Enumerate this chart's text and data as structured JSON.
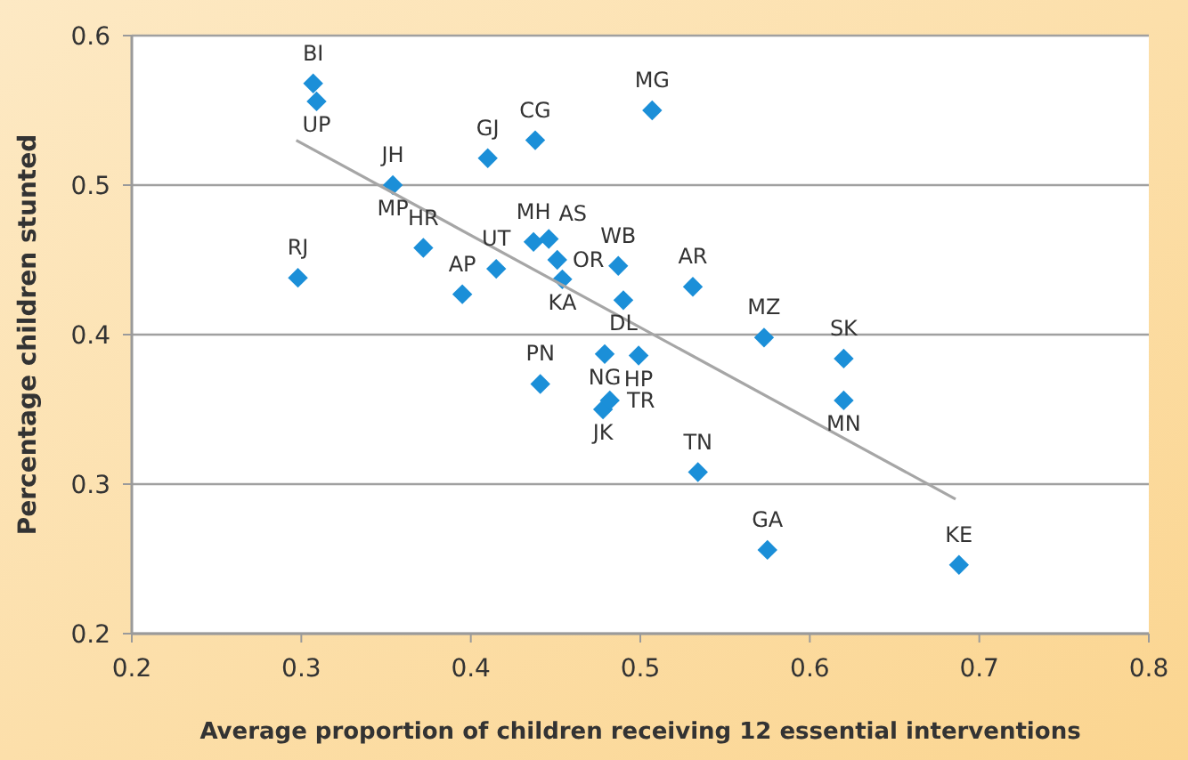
{
  "chart_data": {
    "type": "scatter",
    "xlabel": "Average proportion of children receiving 12 essential interventions",
    "ylabel": "Percentage children stunted",
    "xlim": [
      0.2,
      0.8
    ],
    "xticks": [
      0.2,
      0.3,
      0.4,
      0.5,
      0.6,
      0.7,
      0.8
    ],
    "ylim": [
      0.2,
      0.6
    ],
    "yticks": [
      0.2,
      0.3,
      0.4,
      0.5,
      0.6
    ],
    "grid": "y",
    "series": [
      {
        "marker": "diamond",
        "color": "#1b8fd8",
        "x": [
          0.307,
          0.309,
          0.354,
          0.41,
          0.438,
          0.298,
          0.372,
          0.395,
          0.415,
          0.437,
          0.446,
          0.451,
          0.454,
          0.487,
          0.49,
          0.531,
          0.507,
          0.573,
          0.62,
          0.499,
          0.479,
          0.441,
          0.478,
          0.482,
          0.62,
          0.534,
          0.575,
          0.688
        ],
        "values": [
          0.568,
          0.556,
          0.5,
          0.518,
          0.53,
          0.438,
          0.458,
          0.427,
          0.444,
          0.462,
          0.464,
          0.45,
          0.437,
          0.446,
          0.423,
          0.432,
          0.55,
          0.398,
          0.384,
          0.386,
          0.387,
          0.367,
          0.35,
          0.356,
          0.356,
          0.308,
          0.256,
          0.246
        ]
      },
      {
        "type": "line",
        "color": "#a6a6a6",
        "x": [
          0.297,
          0.686
        ],
        "values": [
          0.53,
          0.29
        ]
      }
    ],
    "annotations": [
      {
        "text": "BI",
        "x": 0.307,
        "y": 0.568
      },
      {
        "text": "UP",
        "x": 0.309,
        "y": 0.556
      },
      {
        "text": "JH",
        "x": 0.354,
        "y": 0.5
      },
      {
        "text": "GJ",
        "x": 0.41,
        "y": 0.518
      },
      {
        "text": "CG",
        "x": 0.438,
        "y": 0.53
      },
      {
        "text": "RJ",
        "x": 0.298,
        "y": 0.438
      },
      {
        "text": "HR",
        "x": 0.372,
        "y": 0.458
      },
      {
        "text": "AP",
        "x": 0.395,
        "y": 0.427
      },
      {
        "text": "UT",
        "x": 0.415,
        "y": 0.444
      },
      {
        "text": "MH",
        "x": 0.437,
        "y": 0.462
      },
      {
        "text": "AS",
        "x": 0.446,
        "y": 0.464
      },
      {
        "text": "OR",
        "x": 0.451,
        "y": 0.45
      },
      {
        "text": "KA",
        "x": 0.454,
        "y": 0.437
      },
      {
        "text": "WB",
        "x": 0.487,
        "y": 0.446
      },
      {
        "text": "DL",
        "x": 0.49,
        "y": 0.423
      },
      {
        "text": "AR",
        "x": 0.531,
        "y": 0.432
      },
      {
        "text": "MG",
        "x": 0.507,
        "y": 0.55
      },
      {
        "text": "MZ",
        "x": 0.573,
        "y": 0.398
      },
      {
        "text": "SK",
        "x": 0.62,
        "y": 0.384
      },
      {
        "text": "HP",
        "x": 0.499,
        "y": 0.386
      },
      {
        "text": "NG",
        "x": 0.479,
        "y": 0.387
      },
      {
        "text": "PN",
        "x": 0.441,
        "y": 0.367
      },
      {
        "text": "JK",
        "x": 0.478,
        "y": 0.35
      },
      {
        "text": "TR",
        "x": 0.482,
        "y": 0.356
      },
      {
        "text": "MN",
        "x": 0.62,
        "y": 0.356
      },
      {
        "text": "TN",
        "x": 0.534,
        "y": 0.308
      },
      {
        "text": "GA",
        "x": 0.575,
        "y": 0.256
      },
      {
        "text": "KE",
        "x": 0.688,
        "y": 0.246
      },
      {
        "text": "MP",
        "x": 0.354,
        "y": 0.5
      }
    ]
  }
}
